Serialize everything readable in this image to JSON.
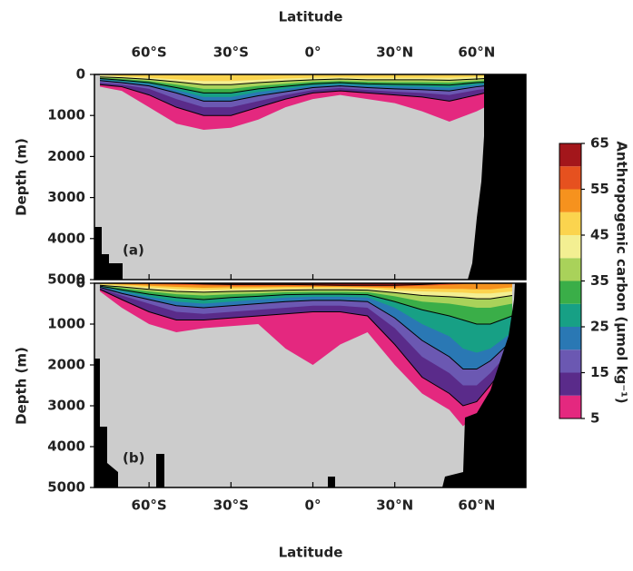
{
  "chart_data": {
    "type": "contour",
    "x_label": "Latitude",
    "y_label": "Depth (m)",
    "xlim": [
      -80,
      78
    ],
    "ylim": [
      0,
      5000
    ],
    "y_reversed": true,
    "xticks": [
      {
        "value": -60,
        "label": "60°S"
      },
      {
        "value": -30,
        "label": "30°S"
      },
      {
        "value": 0,
        "label": "0°"
      },
      {
        "value": 30,
        "label": "30°N"
      },
      {
        "value": 60,
        "label": "60°N"
      }
    ],
    "yticks": [
      0,
      1000,
      2000,
      3000,
      4000,
      5000
    ],
    "contour_lines": [
      10,
      20,
      30,
      40,
      60
    ],
    "colorbar": {
      "title": "Anthropogenic carbon (μmol kg⁻¹)",
      "levels": [
        5,
        10,
        15,
        20,
        25,
        30,
        35,
        40,
        45,
        50,
        55,
        60,
        65
      ],
      "colors": [
        "#e4287f",
        "#5a2b8a",
        "#6b58b2",
        "#2a78b4",
        "#17a085",
        "#3aae48",
        "#a9d25a",
        "#f3ef92",
        "#fbd44e",
        "#f6921e",
        "#e6511f",
        "#a3161b"
      ],
      "ticks": [
        5,
        15,
        25,
        35,
        45,
        55,
        65
      ]
    },
    "panels": [
      {
        "label": "(a)",
        "x": [
          -78,
          -70,
          -60,
          -50,
          -40,
          -30,
          -20,
          -10,
          0,
          10,
          20,
          30,
          40,
          50,
          60,
          63
        ],
        "contours": [
          {
            "level": 5,
            "depth": [
              300,
              400,
              800,
              1200,
              1350,
              1300,
              1100,
              800,
              600,
              500,
              600,
              700,
              900,
              1150,
              900,
              800
            ]
          },
          {
            "level": 10,
            "depth": [
              250,
              300,
              500,
              800,
              1000,
              1000,
              800,
              600,
              450,
              400,
              450,
              500,
              550,
              650,
              500,
              450
            ]
          },
          {
            "level": 15,
            "depth": [
              200,
              250,
              350,
              600,
              800,
              800,
              650,
              500,
              380,
              330,
              380,
              420,
              450,
              500,
              380,
              350
            ]
          },
          {
            "level": 20,
            "depth": [
              150,
              200,
              280,
              450,
              650,
              650,
              520,
              420,
              320,
              280,
              320,
              350,
              370,
              400,
              300,
              280
            ]
          },
          {
            "level": 25,
            "depth": [
              120,
              170,
              230,
              380,
              550,
              550,
              430,
              350,
              270,
              240,
              270,
              290,
              300,
              320,
              250,
              230
            ]
          },
          {
            "level": 30,
            "depth": [
              100,
              140,
              200,
              320,
              450,
              450,
              350,
              290,
              230,
              200,
              230,
              240,
              250,
              260,
              200,
              190
            ]
          },
          {
            "level": 35,
            "depth": [
              80,
              110,
              160,
              250,
              350,
              350,
              280,
              230,
              180,
              160,
              180,
              190,
              190,
              200,
              160,
              150
            ]
          },
          {
            "level": 40,
            "depth": [
              60,
              80,
              120,
              180,
              250,
              250,
              200,
              160,
              130,
              110,
              130,
              130,
              130,
              140,
              110,
              100
            ]
          },
          {
            "level": 45,
            "depth": [
              0,
              50,
              80,
              120,
              160,
              160,
              130,
              100,
              80,
              70,
              80,
              80,
              80,
              80,
              60,
              50
            ]
          }
        ]
      },
      {
        "label": "(b)",
        "x": [
          -78,
          -70,
          -60,
          -50,
          -40,
          -30,
          -20,
          -10,
          0,
          10,
          20,
          30,
          40,
          50,
          55,
          60,
          65,
          73
        ],
        "contours": [
          {
            "level": 5,
            "depth": [
              200,
              600,
              1000,
              1200,
              1100,
              1050,
              1000,
              1600,
              2000,
              1500,
              1200,
              2000,
              2700,
              3100,
              3500,
              3200,
              2900,
              2000
            ]
          },
          {
            "level": 10,
            "depth": [
              150,
              400,
              700,
              900,
              900,
              850,
              800,
              750,
              700,
              700,
              800,
              1500,
              2300,
              2700,
              3000,
              2900,
              2500,
              1800
            ]
          },
          {
            "level": 15,
            "depth": [
              120,
              300,
              500,
              700,
              750,
              700,
              650,
              600,
              550,
              550,
              600,
              1100,
              1800,
              2200,
              2500,
              2500,
              2200,
              1600
            ]
          },
          {
            "level": 20,
            "depth": [
              100,
              250,
              400,
              550,
              600,
              550,
              500,
              450,
              420,
              420,
              450,
              850,
              1400,
              1800,
              2100,
              2100,
              1900,
              1400
            ]
          },
          {
            "level": 25,
            "depth": [
              80,
              200,
              330,
              450,
              500,
              450,
              400,
              350,
              330,
              330,
              350,
              600,
              1000,
              1300,
              1600,
              1700,
              1600,
              1200
            ]
          },
          {
            "level": 30,
            "depth": [
              70,
              160,
              270,
              350,
              400,
              350,
              320,
              280,
              270,
              270,
              280,
              450,
              650,
              800,
              900,
              1000,
              1000,
              800
            ]
          },
          {
            "level": 35,
            "depth": [
              60,
              120,
              200,
              270,
              300,
              270,
              250,
              220,
              210,
              210,
              220,
              320,
              450,
              500,
              550,
              600,
              600,
              500
            ]
          },
          {
            "level": 40,
            "depth": [
              50,
              90,
              150,
              200,
              220,
              200,
              190,
              170,
              160,
              160,
              170,
              230,
              300,
              330,
              350,
              380,
              380,
              300
            ]
          },
          {
            "level": 45,
            "depth": [
              30,
              60,
              100,
              140,
              160,
              150,
              140,
              130,
              120,
              120,
              130,
              170,
              200,
              220,
              230,
              250,
              250,
              200
            ]
          },
          {
            "level": 50,
            "depth": [
              0,
              30,
              60,
              90,
              110,
              100,
              100,
              90,
              90,
              90,
              100,
              120,
              130,
              140,
              140,
              150,
              150,
              100
            ]
          },
          {
            "level": 55,
            "depth": [
              0,
              0,
              20,
              40,
              50,
              60,
              60,
              60,
              60,
              70,
              80,
              80,
              60,
              40,
              20,
              0,
              0,
              0
            ]
          },
          {
            "level": 60,
            "depth": [
              0,
              0,
              0,
              0,
              20,
              30,
              30,
              30,
              40,
              50,
              50,
              50,
              30,
              0,
              0,
              0,
              0,
              0
            ]
          }
        ]
      }
    ]
  }
}
